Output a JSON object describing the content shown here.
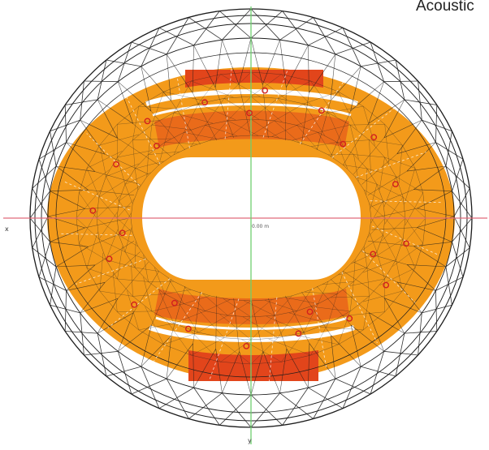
{
  "title": "Acoustic",
  "axes": {
    "x_label": "x",
    "y_label": "y",
    "center_label": "0.00 m"
  },
  "colors": {
    "background": "#ffffff",
    "wire": "#1c1c1c",
    "seat_orange": "#f39a1a",
    "seat_red": "#e2451b",
    "seat_dark_red": "#cf3414",
    "x_axis": "#e06a7a",
    "y_axis": "#6fcf6f",
    "receiver": "#d21f1f"
  },
  "icons": {
    "receiver_marker": "red-circle-receiver-icon"
  }
}
